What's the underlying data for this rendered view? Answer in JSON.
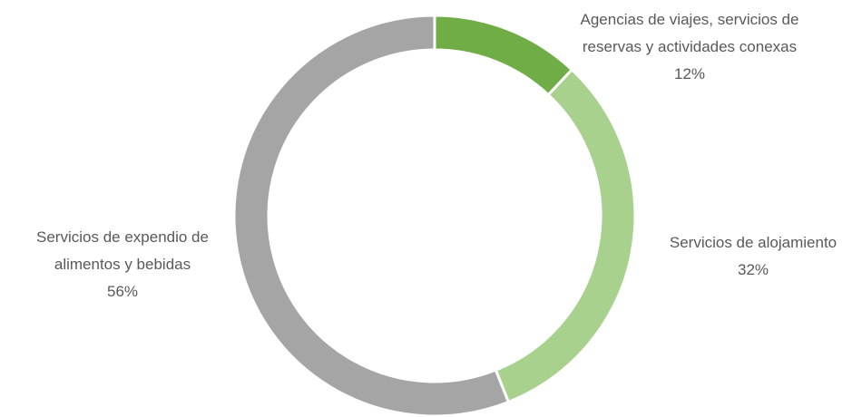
{
  "chart_data": {
    "type": "donut",
    "categories": [
      "Agencias de viajes, servicios de reservas y actividades conexas",
      "Servicios de alojamiento",
      "Servicios de expendio de alimentos y bebidas"
    ],
    "values": [
      12,
      32,
      56
    ],
    "value_labels": [
      "12%",
      "32%",
      "56%"
    ],
    "colors": [
      "#70ad47",
      "#a9d18e",
      "#a5a5a5"
    ]
  }
}
